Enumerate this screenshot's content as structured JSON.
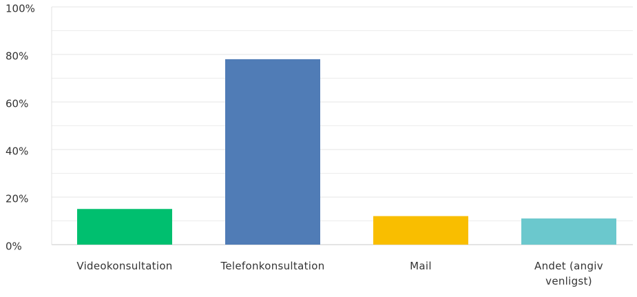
{
  "chart_data": {
    "type": "bar",
    "categories": [
      "Videokonsultation",
      "Telefonkonsultation",
      "Mail",
      "Andet (angiv venligst)"
    ],
    "values": [
      15,
      78,
      12,
      11
    ],
    "colors": [
      "#00bf6f",
      "#507cb6",
      "#f9be00",
      "#6bc8cd"
    ],
    "ylim": [
      0,
      100
    ],
    "yticks": [
      {
        "value": 0,
        "label": "0%"
      },
      {
        "value": 20,
        "label": "20%"
      },
      {
        "value": 40,
        "label": "40%"
      },
      {
        "value": 60,
        "label": "60%"
      },
      {
        "value": 80,
        "label": "80%"
      },
      {
        "value": 100,
        "label": "100%"
      }
    ],
    "minor_yticks": [
      10,
      30,
      50,
      70,
      90
    ],
    "grid": true
  }
}
